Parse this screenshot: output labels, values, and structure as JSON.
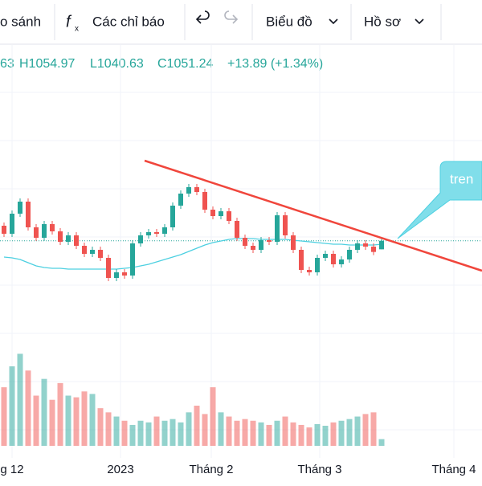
{
  "toolbar": {
    "compare": "o sánh",
    "indicators": "Các chỉ báo",
    "chart": "Biểu đồ",
    "profile": "Hồ sơ"
  },
  "ohlc_header": [
    "63",
    "H1054.97",
    "L1040.63",
    "C1051.24",
    "+13.89 (+1.34%)"
  ],
  "chart_data": {
    "type": "candlestick",
    "x_labels": [
      "g 12",
      "2023",
      "Tháng 2",
      "Tháng 3",
      "Tháng 4"
    ],
    "x_label_positions": [
      1,
      14.5,
      25.8,
      39.3,
      56
    ],
    "open": [
      1070,
      1060,
      1085,
      1100,
      1068,
      1055,
      1072,
      1063,
      1050,
      1058,
      1045,
      1035,
      1040,
      1030,
      1005,
      1012,
      1008,
      1048,
      1058,
      1062,
      1060,
      1068,
      1095,
      1110,
      1118,
      1112,
      1090,
      1082,
      1088,
      1076,
      1055,
      1045,
      1040,
      1052,
      1050,
      1083,
      1058,
      1040,
      1015,
      1012,
      1030,
      1035,
      1022,
      1028,
      1040,
      1048,
      1044,
      1040.63
    ],
    "high": [
      1074,
      1089,
      1104,
      1104,
      1072,
      1076,
      1076,
      1067,
      1062,
      1062,
      1049,
      1044,
      1044,
      1034,
      1016,
      1016,
      1052,
      1062,
      1066,
      1066,
      1072,
      1099,
      1114,
      1122,
      1122,
      1116,
      1094,
      1092,
      1092,
      1080,
      1059,
      1049,
      1056,
      1056,
      1087,
      1087,
      1062,
      1044,
      1019,
      1034,
      1039,
      1039,
      1032,
      1044,
      1052,
      1052,
      1048,
      1054.97
    ],
    "low": [
      1056,
      1056,
      1081,
      1064,
      1051,
      1051,
      1059,
      1046,
      1046,
      1041,
      1031,
      1031,
      1026,
      1001,
      1001,
      1004,
      1004,
      1044,
      1054,
      1056,
      1056,
      1064,
      1091,
      1106,
      1108,
      1086,
      1078,
      1078,
      1072,
      1051,
      1041,
      1036,
      1036,
      1046,
      1046,
      1054,
      1036,
      1011,
      1008,
      1008,
      1026,
      1018,
      1018,
      1024,
      1036,
      1040,
      1033.35,
      1040.63
    ],
    "close": [
      1060,
      1085,
      1100,
      1068,
      1055,
      1072,
      1063,
      1050,
      1058,
      1045,
      1035,
      1040,
      1030,
      1005,
      1012,
      1008,
      1048,
      1058,
      1062,
      1060,
      1068,
      1095,
      1110,
      1118,
      1112,
      1090,
      1082,
      1088,
      1076,
      1055,
      1045,
      1040,
      1052,
      1050,
      1083,
      1058,
      1040,
      1015,
      1012,
      1030,
      1035,
      1022,
      1028,
      1040,
      1048,
      1044,
      1037.35,
      1051.24
    ],
    "volume": [
      70,
      95,
      110,
      90,
      60,
      80,
      55,
      75,
      60,
      58,
      65,
      62,
      45,
      40,
      35,
      30,
      25,
      30,
      28,
      35,
      30,
      32,
      28,
      40,
      48,
      38,
      70,
      40,
      35,
      30,
      32,
      30,
      28,
      25,
      30,
      35,
      28,
      25,
      22,
      26,
      24,
      28,
      30,
      32,
      35,
      38,
      40,
      8
    ],
    "moving_average": [
      1031,
      1030,
      1028,
      1024,
      1020,
      1018,
      1017,
      1017,
      1016,
      1016,
      1016,
      1016,
      1016,
      1016,
      1016,
      1017,
      1018,
      1020,
      1022,
      1025,
      1028,
      1031,
      1034,
      1038,
      1042,
      1046,
      1049,
      1051,
      1053,
      1054,
      1054,
      1054,
      1053,
      1053,
      1053,
      1053,
      1052,
      1051,
      1050,
      1049,
      1048,
      1047,
      1047,
      1046,
      1046,
      1046,
      1046,
      1047
    ],
    "ylim": [
      1000,
      1130
    ],
    "volume_lim": [
      0,
      120
    ],
    "up_color": "#26a69a",
    "down_color": "#ef5350",
    "ma_color": "#4dd0e1",
    "trend_line": {
      "color": "#f0463c",
      "points": [
        {
          "x": 17.5,
          "y": 1151
        },
        {
          "x": 59.5,
          "y": 1014
        }
      ]
    },
    "annotation": "tren"
  }
}
